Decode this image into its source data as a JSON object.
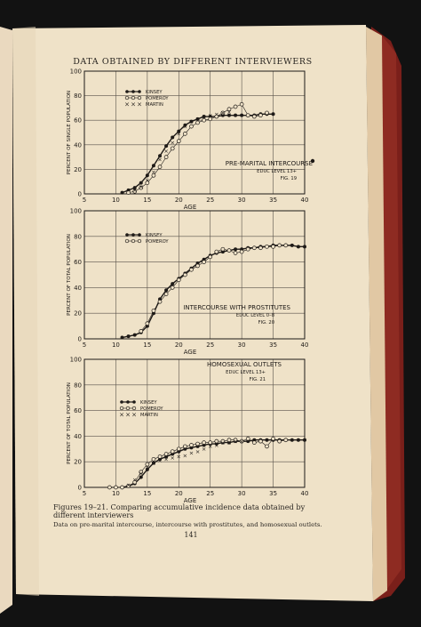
{
  "page": {
    "header": "DATA OBTAINED BY DIFFERENT INTERVIEWERS",
    "caption_main": "Figures 19–21. Comparing accumulative incidence data obtained by different interviewers",
    "caption_sub": "Data on pre-marital intercourse, intercourse with prostitutes, and homosexual outlets.",
    "page_number": "141"
  },
  "chart_data": [
    {
      "type": "line",
      "ylabel": "PERCENT OF SINGLE POPULATION",
      "xlabel": "AGE",
      "xlim": [
        5,
        40
      ],
      "ylim": [
        0,
        100
      ],
      "xticks": [
        "5",
        "10",
        "15",
        "20",
        "25",
        "30",
        "35",
        "40"
      ],
      "yticks": [
        "0",
        "20",
        "40",
        "60",
        "80",
        "100"
      ],
      "annotation": [
        "PRE-MARITAL INTERCOURSE",
        "EDUC LEVEL 13+",
        "FIG. 19"
      ],
      "legend": [
        "KINSEY",
        "POMEROY",
        "MARTIN"
      ],
      "series": [
        {
          "name": "KINSEY",
          "marker": "dot",
          "x": [
            11,
            12,
            13,
            14,
            15,
            16,
            17,
            18,
            19,
            20,
            21,
            22,
            23,
            24,
            25,
            26,
            27,
            28,
            29,
            30,
            31,
            32,
            33,
            34,
            35
          ],
          "y": [
            1,
            3,
            5,
            9,
            15,
            23,
            31,
            39,
            46,
            51,
            56,
            59,
            61,
            63,
            63,
            63,
            64,
            64,
            64,
            64,
            64,
            64,
            65,
            65,
            65
          ]
        },
        {
          "name": "POMEROY",
          "marker": "circle",
          "x": [
            12,
            13,
            14,
            15,
            16,
            17,
            18,
            19,
            20,
            21,
            22,
            23,
            24,
            25,
            26,
            27,
            28,
            29,
            30,
            31,
            32,
            33,
            34
          ],
          "y": [
            1,
            2,
            5,
            9,
            15,
            22,
            30,
            37,
            43,
            49,
            55,
            58,
            60,
            61,
            63,
            66,
            69,
            71,
            73,
            64,
            63,
            64,
            66
          ]
        },
        {
          "name": "MARTIN",
          "marker": "x",
          "x": [
            13,
            14,
            15,
            16,
            17,
            18,
            19,
            20,
            21,
            22,
            23,
            24,
            25,
            26,
            27,
            28
          ],
          "y": [
            3,
            6,
            11,
            18,
            28,
            35,
            42,
            49,
            55,
            59,
            61,
            63,
            64,
            65,
            66,
            67
          ]
        }
      ]
    },
    {
      "type": "line",
      "ylabel": "PERCENT OF TOTAL POPULATION",
      "xlabel": "AGE",
      "xlim": [
        5,
        40
      ],
      "ylim": [
        0,
        100
      ],
      "xticks": [
        "5",
        "10",
        "15",
        "20",
        "25",
        "30",
        "35",
        "40"
      ],
      "yticks": [
        "0",
        "20",
        "40",
        "60",
        "80",
        "100"
      ],
      "annotation": [
        "INTERCOURSE WITH PROSTITUTES",
        "EDUC LEVEL 0–8",
        "FIG. 20"
      ],
      "legend": [
        "KINSEY",
        "POMEROY"
      ],
      "series": [
        {
          "name": "KINSEY",
          "marker": "dot",
          "x": [
            11,
            12,
            13,
            14,
            15,
            16,
            17,
            18,
            19,
            20,
            21,
            22,
            23,
            24,
            25,
            26,
            27,
            28,
            29,
            30,
            31,
            32,
            33,
            34,
            35,
            36,
            37,
            38,
            39,
            40
          ],
          "y": [
            1,
            2,
            3,
            5,
            10,
            20,
            31,
            38,
            43,
            47,
            51,
            55,
            59,
            62,
            65,
            67,
            68,
            69,
            70,
            70,
            71,
            71,
            72,
            72,
            73,
            73,
            73,
            73,
            72,
            72
          ]
        },
        {
          "name": "POMEROY",
          "marker": "circle",
          "x": [
            14,
            15,
            16,
            17,
            18,
            19,
            20,
            21,
            22,
            23,
            24,
            25,
            26,
            27,
            28,
            29,
            30,
            31,
            32,
            33,
            34,
            35,
            36,
            37
          ],
          "y": [
            6,
            12,
            22,
            29,
            35,
            40,
            46,
            50,
            54,
            57,
            60,
            64,
            68,
            70,
            69,
            67,
            68,
            70,
            71,
            71,
            72,
            72,
            73,
            73
          ]
        }
      ]
    },
    {
      "type": "line",
      "ylabel": "PERCENT OF TOTAL POPULATION",
      "xlabel": "AGE",
      "xlim": [
        5,
        40
      ],
      "ylim": [
        0,
        100
      ],
      "xticks": [
        "5",
        "10",
        "15",
        "20",
        "25",
        "30",
        "35",
        "40"
      ],
      "yticks": [
        "0",
        "20",
        "40",
        "60",
        "80",
        "100"
      ],
      "annotation": [
        "HOMOSEXUAL OUTLETS",
        "EDUC LEVEL 13+",
        "FIG. 21"
      ],
      "legend": [
        "KINSEY",
        "POMEROY",
        "MARTIN"
      ],
      "series": [
        {
          "name": "KINSEY",
          "marker": "dot",
          "x": [
            11,
            12,
            13,
            14,
            15,
            16,
            17,
            18,
            19,
            20,
            21,
            22,
            23,
            24,
            25,
            26,
            27,
            28,
            29,
            30,
            31,
            32,
            33,
            34,
            35,
            36,
            37,
            38,
            39,
            40
          ],
          "y": [
            0,
            1,
            3,
            8,
            14,
            19,
            22,
            24,
            26,
            28,
            30,
            31,
            32,
            33,
            34,
            34,
            35,
            35,
            36,
            36,
            36,
            37,
            37,
            37,
            37,
            37,
            37,
            37,
            37,
            37
          ]
        },
        {
          "name": "POMEROY",
          "marker": "circle",
          "x": [
            9,
            10,
            11,
            12,
            13,
            14,
            15,
            16,
            17,
            18,
            19,
            20,
            21,
            22,
            23,
            24,
            25,
            26,
            27,
            28,
            29,
            30,
            31,
            32,
            33,
            34,
            35,
            36,
            37
          ],
          "y": [
            0,
            0,
            0,
            1,
            4,
            12,
            18,
            22,
            24,
            26,
            28,
            30,
            32,
            33,
            34,
            35,
            35,
            36,
            36,
            37,
            37,
            36,
            38,
            35,
            36,
            32,
            38,
            36,
            37
          ]
        },
        {
          "name": "MARTIN",
          "marker": "x",
          "x": [
            12,
            13,
            14,
            15,
            16,
            17,
            18,
            19,
            20,
            21,
            22,
            23,
            24,
            25,
            26,
            27,
            28,
            29,
            30
          ],
          "y": [
            2,
            6,
            11,
            16,
            19,
            21,
            22,
            23,
            24,
            25,
            27,
            28,
            30,
            32,
            33,
            35,
            35,
            36,
            36
          ]
        }
      ]
    }
  ]
}
